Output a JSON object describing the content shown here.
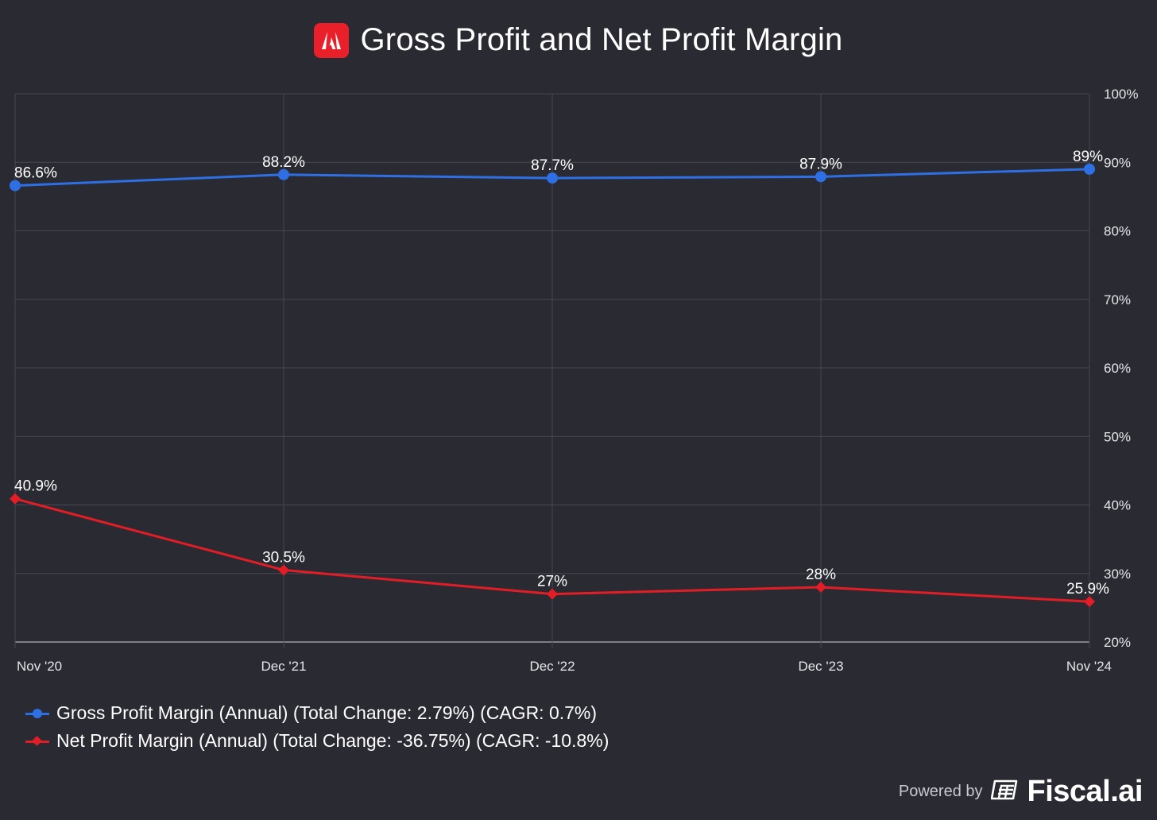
{
  "chart_data": {
    "type": "line",
    "title": "Gross Profit and Net Profit Margin",
    "categories": [
      "Nov '20",
      "Dec '21",
      "Dec '22",
      "Dec '23",
      "Nov '24"
    ],
    "y_ticks": [
      "100%",
      "90%",
      "80%",
      "70%",
      "60%",
      "50%",
      "40%",
      "30%",
      "20%"
    ],
    "y_tick_values": [
      100,
      90,
      80,
      70,
      60,
      50,
      40,
      30,
      20
    ],
    "ylim": [
      20,
      100
    ],
    "grid": true,
    "y_axis_side": "right",
    "legend_position": "bottom-left",
    "series": [
      {
        "name": "Gross Profit Margin (Annual) (Total Change: 2.79%) (CAGR: 0.7%)",
        "color": "#2f6fe4",
        "marker": "circle",
        "values": [
          86.6,
          88.2,
          87.7,
          87.9,
          89.0
        ],
        "labels": [
          "86.6%",
          "88.2%",
          "87.7%",
          "87.9%",
          "89%"
        ]
      },
      {
        "name": "Net Profit Margin (Annual) (Total Change: -36.75%) (CAGR: -10.8%)",
        "color": "#e21d26",
        "marker": "diamond",
        "values": [
          40.9,
          30.5,
          27.0,
          28.0,
          25.9
        ],
        "labels": [
          "40.9%",
          "30.5%",
          "27%",
          "28%",
          "25.9%"
        ]
      }
    ]
  },
  "footer": {
    "powered_by": "Powered by",
    "brand": "Fiscal.ai",
    "brand_icon": "fiscal-ai-logo-icon"
  },
  "header": {
    "logo_icon": "adobe-logo-icon",
    "logo_color": "#e9202a"
  }
}
